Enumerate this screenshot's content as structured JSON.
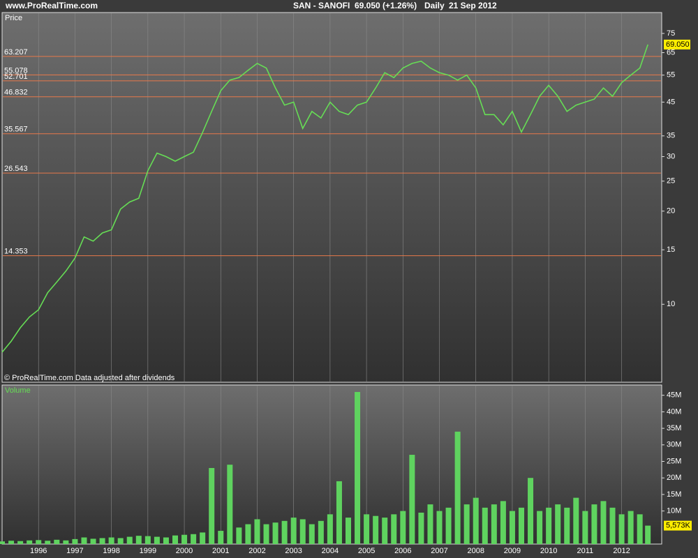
{
  "header": {
    "site": "www.ProRealTime.com",
    "symbol": "SAN - SANOFI",
    "quote": "69.050 (+1.26%)",
    "period": "Daily",
    "date": "21 Sep 2012"
  },
  "chart_data": [
    {
      "type": "line",
      "label": "Price",
      "note": "© ProRealTime.com  Data adjusted after dividends",
      "log_scale": true,
      "ylim": [
        5.6,
        87.6
      ],
      "yticks": [
        10,
        15,
        20,
        25,
        30,
        35,
        45,
        55,
        65,
        75
      ],
      "xlim": [
        1995.0,
        2013.1
      ],
      "xticks": [
        1996,
        1997,
        1998,
        1999,
        2000,
        2001,
        2002,
        2003,
        2004,
        2005,
        2006,
        2007,
        2008,
        2009,
        2010,
        2011,
        2012
      ],
      "grid": true,
      "level_color": "#e8784a",
      "levels": [
        63.207,
        55.078,
        52.701,
        46.832,
        35.567,
        26.543,
        14.353
      ],
      "last": {
        "value": 69.05,
        "label": "69.050"
      },
      "x": [
        1995,
        1995.25,
        1995.5,
        1995.75,
        1996,
        1996.25,
        1996.5,
        1996.75,
        1997,
        1997.25,
        1997.5,
        1997.75,
        1998,
        1998.25,
        1998.5,
        1998.75,
        1999,
        1999.25,
        1999.5,
        1999.75,
        2000,
        2000.25,
        2000.5,
        2000.75,
        2001,
        2001.25,
        2001.5,
        2001.75,
        2002,
        2002.25,
        2002.5,
        2002.75,
        2003,
        2003.25,
        2003.5,
        2003.75,
        2004,
        2004.25,
        2004.5,
        2004.75,
        2005,
        2005.25,
        2005.5,
        2005.75,
        2006,
        2006.25,
        2006.5,
        2006.75,
        2007,
        2007.25,
        2007.5,
        2007.75,
        2008,
        2008.25,
        2008.5,
        2008.75,
        2009,
        2009.25,
        2009.5,
        2009.75,
        2010,
        2010.25,
        2010.5,
        2010.75,
        2011,
        2011.25,
        2011.5,
        2011.75,
        2012,
        2012.25,
        2012.5,
        2012.72
      ],
      "series": [
        {
          "color": "#66dd55",
          "values": [
            7.0,
            7.6,
            8.4,
            9.1,
            9.6,
            10.9,
            11.8,
            12.8,
            14.1,
            16.5,
            16,
            17,
            17.4,
            20.3,
            21.4,
            22,
            27,
            30.8,
            30,
            29,
            30,
            31,
            35.9,
            42,
            49,
            53,
            54,
            57,
            60,
            58,
            50,
            44,
            45,
            37,
            42,
            40,
            45,
            42,
            41,
            44,
            45,
            50,
            56,
            54,
            58,
            60,
            61,
            58,
            56,
            55,
            53,
            55,
            50,
            41,
            41,
            38,
            42,
            36,
            41,
            47,
            51,
            47,
            42,
            44,
            45,
            46,
            50,
            47,
            52,
            55,
            58,
            69.05
          ]
        }
      ]
    },
    {
      "type": "bar",
      "label": "Volume",
      "ylim": [
        0,
        48.1
      ],
      "yticks": [
        {
          "value": 10,
          "label": "10M"
        },
        {
          "value": 15,
          "label": "15M"
        },
        {
          "value": 20,
          "label": "20M"
        },
        {
          "value": 25,
          "label": "25M"
        },
        {
          "value": 30,
          "label": "30M"
        },
        {
          "value": 35,
          "label": "35M"
        },
        {
          "value": 40,
          "label": "40M"
        },
        {
          "value": 45,
          "label": "45M"
        }
      ],
      "last": {
        "value": 5.573,
        "label": "5,573K"
      },
      "x": [
        1995,
        1995.25,
        1995.5,
        1995.75,
        1996,
        1996.25,
        1996.5,
        1996.75,
        1997,
        1997.25,
        1997.5,
        1997.75,
        1998,
        1998.25,
        1998.5,
        1998.75,
        1999,
        1999.25,
        1999.5,
        1999.75,
        2000,
        2000.25,
        2000.5,
        2000.75,
        2001,
        2001.25,
        2001.5,
        2001.75,
        2002,
        2002.25,
        2002.5,
        2002.75,
        2003,
        2003.25,
        2003.5,
        2003.75,
        2004,
        2004.25,
        2004.5,
        2004.75,
        2005,
        2005.25,
        2005.5,
        2005.75,
        2006,
        2006.25,
        2006.5,
        2006.75,
        2007,
        2007.25,
        2007.5,
        2007.75,
        2008,
        2008.25,
        2008.5,
        2008.75,
        2009,
        2009.25,
        2009.5,
        2009.75,
        2010,
        2010.25,
        2010.5,
        2010.75,
        2011,
        2011.25,
        2011.5,
        2011.75,
        2012,
        2012.25,
        2012.5,
        2012.72
      ],
      "series": [
        {
          "color": "#5fd35f",
          "values": [
            0.8,
            1.0,
            0.9,
            1.1,
            1.2,
            1.0,
            1.3,
            1.1,
            1.5,
            2.0,
            1.6,
            1.8,
            2.0,
            1.8,
            2.2,
            2.5,
            2.4,
            2.2,
            2.0,
            2.6,
            2.8,
            3.0,
            3.5,
            23,
            4.0,
            24,
            5.0,
            6.0,
            7.5,
            6.0,
            6.5,
            7.0,
            8.0,
            7.5,
            6.0,
            7.0,
            9.0,
            19,
            8.0,
            46,
            9.0,
            8.5,
            8.0,
            9.0,
            10,
            27,
            9.5,
            12,
            10,
            11,
            34,
            12,
            14,
            11,
            12,
            13,
            10,
            11,
            20,
            10,
            11,
            12,
            11,
            14,
            10,
            12,
            13,
            11,
            9,
            10,
            9,
            5.573
          ]
        }
      ]
    }
  ]
}
